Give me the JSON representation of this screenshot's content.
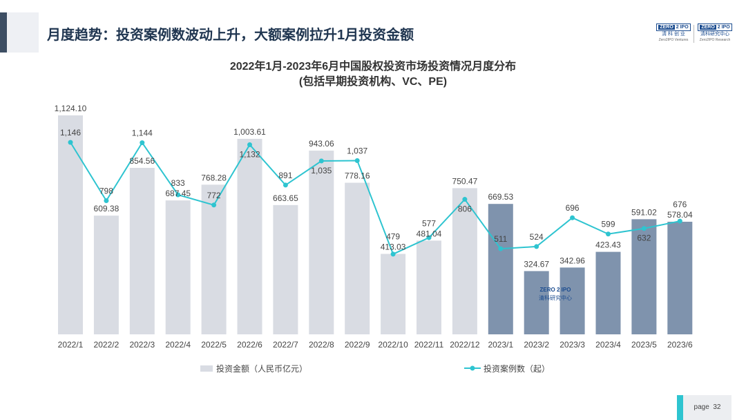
{
  "slide": {
    "title": "月度趋势：投资案例数波动上升，大额案例拉升1月投资金额",
    "page_label": "page",
    "page_number": "32"
  },
  "logos": [
    {
      "top": "ZERO",
      "mid": "IPO",
      "name": "清 科 创 业",
      "sub": "Zero2IPO Ventures"
    },
    {
      "top": "ZERO",
      "mid": "IPO",
      "name": "清科研究中心",
      "sub": "Zero2IPO Research"
    }
  ],
  "chart_data": {
    "type": "bar",
    "title": "2022年1月-2023年6月中国股权投资市场投资情况月度分布",
    "subtitle": "(包括早期投资机构、VC、PE)",
    "categories": [
      "2022/1",
      "2022/2",
      "2022/3",
      "2022/4",
      "2022/5",
      "2022/6",
      "2022/7",
      "2022/8",
      "2022/9",
      "2022/10",
      "2022/11",
      "2022/12",
      "2023/1",
      "2023/2",
      "2023/3",
      "2023/4",
      "2023/5",
      "2023/6"
    ],
    "series": [
      {
        "name": "投资金额（人民币亿元）",
        "type": "bar",
        "axis": "left",
        "values": [
          1124.1,
          609.38,
          854.56,
          687.45,
          768.28,
          1003.61,
          663.65,
          943.06,
          778.16,
          413.03,
          481.04,
          750.47,
          669.53,
          324.67,
          342.96,
          423.43,
          591.02,
          578.04
        ],
        "labels": [
          "1,124.10",
          "609.38",
          "854.56",
          "687.45",
          "768.28",
          "1,003.61",
          "663.65",
          "943.06",
          "778.16",
          "413.03",
          "481.04",
          "750.47",
          "669.53",
          "324.67",
          "342.96",
          "423.43",
          "591.02",
          "578.04"
        ],
        "color_2022": "#d9dce3",
        "color_2023": "#7f93ad"
      },
      {
        "name": "投资案例数（起）",
        "type": "line",
        "axis": "right",
        "values": [
          1146,
          798,
          1144,
          833,
          772,
          1132,
          891,
          1035,
          1037,
          479,
          577,
          806,
          511,
          524,
          696,
          599,
          632,
          676
        ],
        "labels": [
          "1,146",
          "798",
          "1,144",
          "833",
          "772",
          "1,132",
          "891",
          "1,035",
          "1,037",
          "479",
          "577",
          "806",
          "511",
          "524",
          "696",
          "599",
          "632",
          "676"
        ],
        "color": "#2ec4d0"
      }
    ],
    "legend_position": "bottom",
    "grid": false,
    "watermark": "ZERO2IPO 清科研究中心 Zero2IPO Research"
  }
}
